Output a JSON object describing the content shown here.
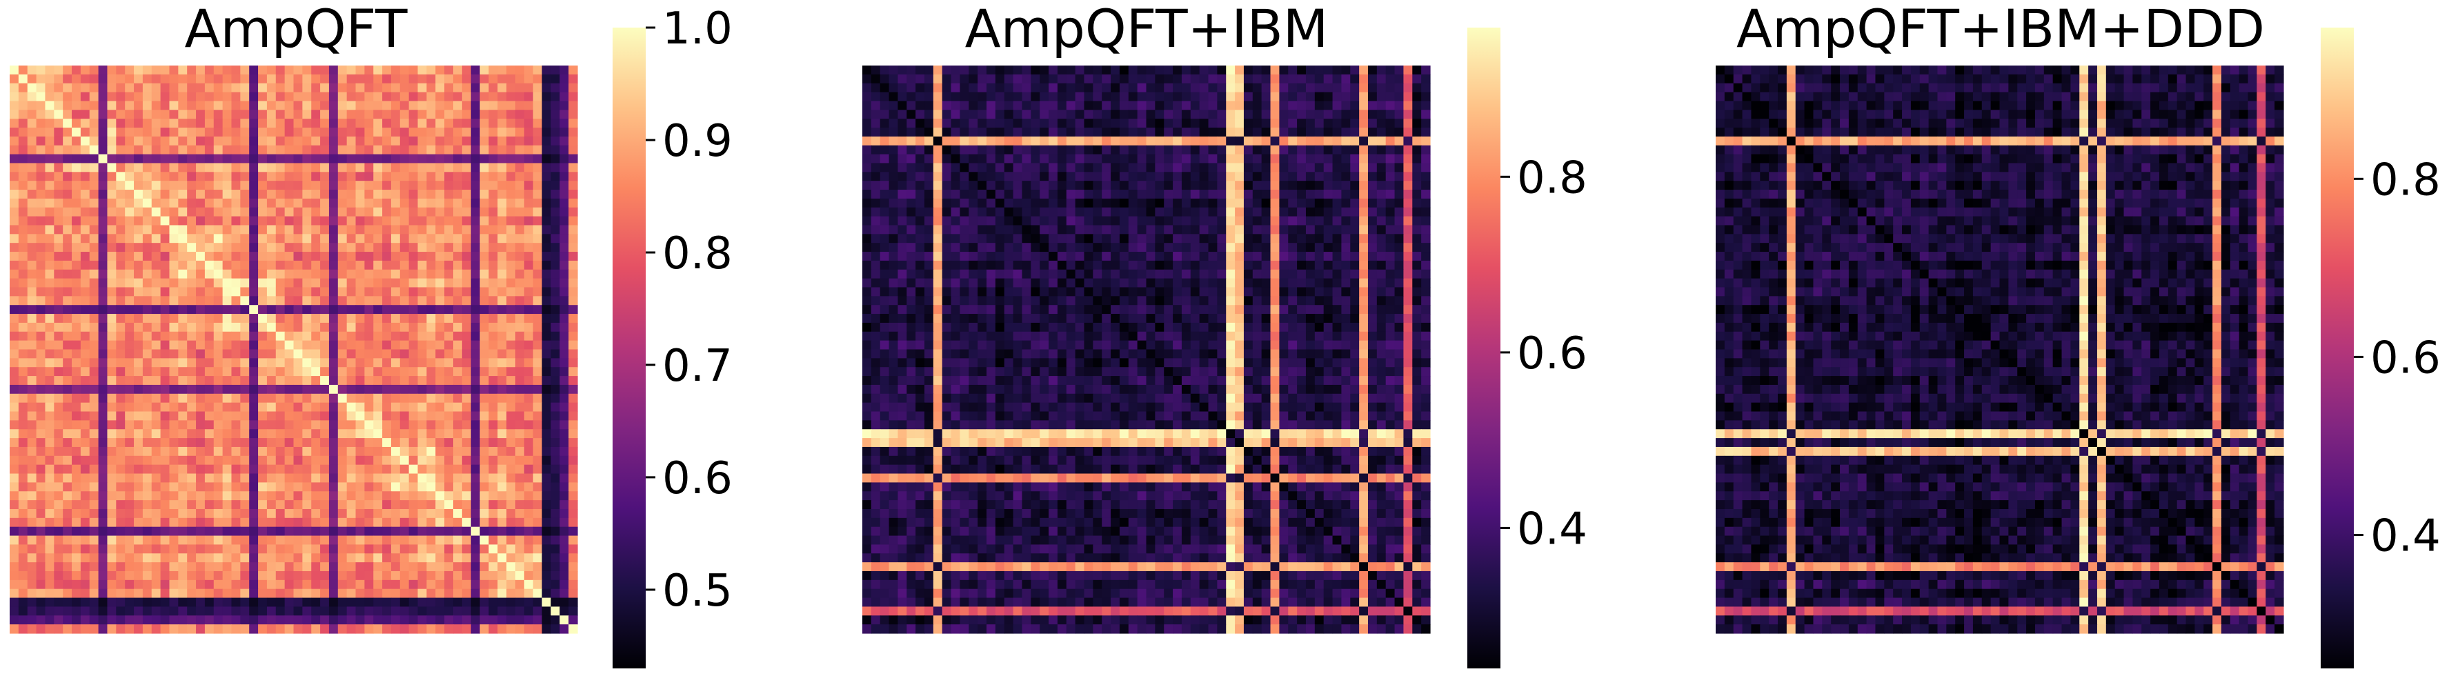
{
  "chart_data": [
    {
      "type": "heatmap",
      "title": "AmpQFT",
      "colormap": "magma",
      "grid_size": 64,
      "vmin": 0.43,
      "vmax": 1.0,
      "colorbar_ticks": [
        0.5,
        0.6,
        0.7,
        0.8,
        0.9,
        1.0
      ],
      "colorbar_tick_labels": [
        "0.5",
        "0.6",
        "0.7",
        "0.8",
        "0.9",
        "1.0"
      ],
      "background_level": 0.86,
      "diagonal_value": 1.0,
      "low_lines": [
        {
          "index": 10,
          "value": 0.62
        },
        {
          "index": 27,
          "value": 0.6
        },
        {
          "index": 36,
          "value": 0.63
        },
        {
          "index": 52,
          "value": 0.6
        },
        {
          "index": 60,
          "value": 0.5
        },
        {
          "index": 61,
          "value": 0.52
        },
        {
          "index": 62,
          "value": 0.58
        }
      ],
      "high_lines": []
    },
    {
      "type": "heatmap",
      "title": "AmpQFT+IBM",
      "colormap": "magma",
      "grid_size": 64,
      "vmin": 0.24,
      "vmax": 0.97,
      "colorbar_ticks": [
        0.4,
        0.6,
        0.8
      ],
      "colorbar_tick_labels": [
        "0.4",
        "0.6",
        "0.8"
      ],
      "background_level": 0.33,
      "diagonal_value": 0.25,
      "low_lines": [],
      "high_lines": [
        {
          "index": 8,
          "value": 0.84
        },
        {
          "index": 41,
          "value": 0.92
        },
        {
          "index": 42,
          "value": 0.88
        },
        {
          "index": 46,
          "value": 0.8
        },
        {
          "index": 56,
          "value": 0.82
        },
        {
          "index": 61,
          "value": 0.7
        }
      ]
    },
    {
      "type": "heatmap",
      "title": "AmpQFT+IBM+DDD",
      "colormap": "magma",
      "grid_size": 64,
      "vmin": 0.25,
      "vmax": 0.97,
      "colorbar_ticks": [
        0.4,
        0.6,
        0.8
      ],
      "colorbar_tick_labels": [
        "0.4",
        "0.6",
        "0.8"
      ],
      "background_level": 0.32,
      "diagonal_value": 0.25,
      "low_lines": [],
      "high_lines": [
        {
          "index": 8,
          "value": 0.84
        },
        {
          "index": 41,
          "value": 0.92
        },
        {
          "index": 43,
          "value": 0.88
        },
        {
          "index": 56,
          "value": 0.8
        },
        {
          "index": 61,
          "value": 0.68
        }
      ]
    }
  ]
}
